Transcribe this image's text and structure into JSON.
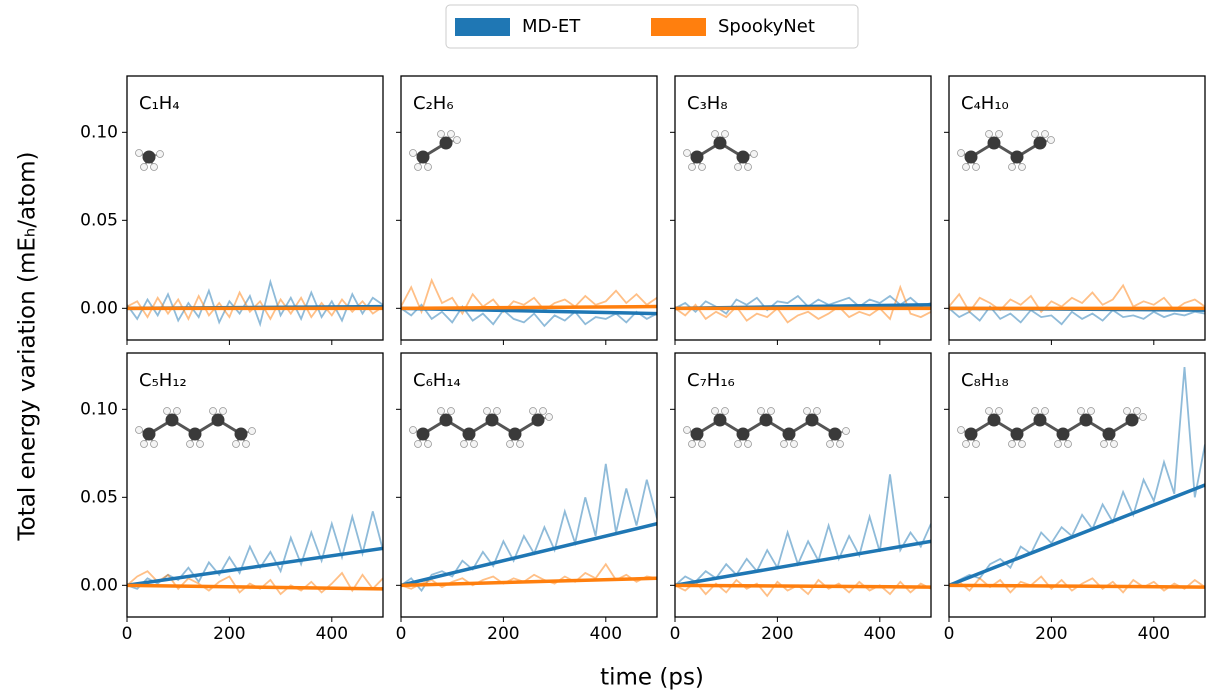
{
  "chart_data": {
    "type": "line",
    "xlabel": "time (ps)",
    "ylabel": "Total energy variation (mEₕ/atom)",
    "legend": "upper center",
    "xlim": [
      0,
      500
    ],
    "xticks": [
      0,
      200,
      400
    ],
    "ylim": [
      -0.018,
      0.132
    ],
    "yticks": [
      {
        "value": 0,
        "label": "0.00"
      },
      {
        "value": 0.05,
        "label": "0.05"
      },
      {
        "value": 0.1,
        "label": "0.10"
      }
    ],
    "x": [
      0,
      20,
      40,
      60,
      80,
      100,
      120,
      140,
      160,
      180,
      200,
      220,
      240,
      260,
      280,
      300,
      320,
      340,
      360,
      380,
      400,
      420,
      440,
      460,
      480,
      500
    ],
    "panels": [
      "C₁H₄",
      "C₂H₆",
      "C₃H₈",
      "C₄H₁₀",
      "C₅H₁₂",
      "C₆H₁₄",
      "C₇H₁₆",
      "C₈H₁₈"
    ],
    "series": [
      {
        "name": "MD-ET",
        "color": "#1f77b4",
        "values": [
          [
            0.002,
            -0.006,
            0.005,
            -0.004,
            0.008,
            -0.007,
            0.003,
            -0.005,
            0.01,
            -0.008,
            0.004,
            -0.003,
            0.007,
            -0.009,
            0.015,
            -0.004,
            0.006,
            -0.006,
            0.009,
            -0.005,
            0.004,
            -0.007,
            0.008,
            -0.003,
            0.006,
            0.002
          ],
          [
            0,
            -0.004,
            0.002,
            -0.006,
            -0.002,
            -0.008,
            0.001,
            -0.007,
            -0.003,
            -0.009,
            -0.001,
            -0.006,
            -0.008,
            -0.003,
            -0.01,
            -0.004,
            -0.007,
            -0.002,
            -0.009,
            -0.005,
            -0.006,
            -0.003,
            -0.008,
            -0.002,
            -0.006,
            -0.003
          ],
          [
            0,
            0.003,
            -0.002,
            0.004,
            0.001,
            -0.003,
            0.005,
            0.002,
            0.006,
            -0.001,
            0.004,
            0.003,
            0.007,
            0.001,
            0.005,
            0.002,
            0.004,
            0.006,
            0.001,
            0.005,
            0.003,
            0.007,
            0.002,
            0.006,
            0.001,
            0.003
          ],
          [
            0,
            -0.005,
            -0.002,
            -0.007,
            0.001,
            -0.006,
            -0.003,
            -0.008,
            -0.001,
            -0.005,
            -0.004,
            -0.009,
            -0.002,
            -0.006,
            -0.003,
            -0.007,
            -0.001,
            -0.005,
            -0.004,
            -0.006,
            -0.002,
            -0.005,
            -0.003,
            -0.004,
            -0.002,
            -0.003
          ],
          [
            0,
            -0.002,
            0.004,
            0.001,
            0.006,
            0.003,
            0.01,
            0.002,
            0.013,
            0.006,
            0.016,
            0.007,
            0.022,
            0.01,
            0.019,
            0.008,
            0.027,
            0.012,
            0.03,
            0.014,
            0.035,
            0.016,
            0.039,
            0.018,
            0.042,
            0.02
          ],
          [
            0,
            0.004,
            -0.003,
            0.006,
            0.008,
            0.005,
            0.014,
            0.009,
            0.019,
            0.011,
            0.025,
            0.014,
            0.028,
            0.018,
            0.033,
            0.02,
            0.042,
            0.024,
            0.05,
            0.028,
            0.069,
            0.03,
            0.055,
            0.034,
            0.06,
            0.038
          ],
          [
            0,
            0.005,
            0.002,
            0.008,
            0.004,
            0.012,
            0.006,
            0.015,
            0.008,
            0.02,
            0.01,
            0.03,
            0.012,
            0.025,
            0.014,
            0.034,
            0.015,
            0.028,
            0.017,
            0.039,
            0.019,
            0.063,
            0.02,
            0.03,
            0.022,
            0.035
          ],
          [
            0,
            0.003,
            0.006,
            0.004,
            0.012,
            0.015,
            0.01,
            0.022,
            0.018,
            0.03,
            0.024,
            0.033,
            0.028,
            0.04,
            0.032,
            0.046,
            0.036,
            0.053,
            0.04,
            0.06,
            0.048,
            0.07,
            0.052,
            0.124,
            0.05,
            0.08
          ]
        ],
        "fit": [
          [
            0,
            0.001
          ],
          [
            0,
            -0.003
          ],
          [
            0,
            0.002
          ],
          [
            0,
            -0.001
          ],
          [
            0,
            0.021
          ],
          [
            0,
            0.035
          ],
          [
            0,
            0.025
          ],
          [
            0,
            0.057
          ]
        ]
      },
      {
        "name": "SpookyNet",
        "color": "#ff7f0e",
        "values": [
          [
            0.001,
            0.004,
            -0.005,
            0.006,
            -0.003,
            0.005,
            -0.006,
            0.007,
            -0.004,
            0.003,
            -0.005,
            0.009,
            -0.002,
            0.004,
            -0.006,
            0.005,
            -0.003,
            0.006,
            -0.005,
            0.003,
            -0.004,
            0.005,
            -0.002,
            0.004,
            -0.003,
            0.001
          ],
          [
            0.001,
            0.012,
            -0.002,
            0.016,
            0.003,
            0.006,
            -0.003,
            0.008,
            0.001,
            0.005,
            -0.002,
            0.004,
            0.002,
            0.006,
            -0.001,
            0.003,
            0.005,
            0.001,
            0.007,
            0.002,
            0.004,
            0.01,
            0.003,
            0.008,
            0.002,
            0.006
          ],
          [
            0,
            -0.004,
            0.002,
            -0.006,
            -0.002,
            -0.005,
            0.001,
            -0.007,
            -0.003,
            -0.005,
            0,
            -0.008,
            -0.004,
            -0.002,
            -0.006,
            -0.003,
            0.001,
            -0.005,
            -0.002,
            -0.004,
            0,
            -0.006,
            0.012,
            -0.003,
            -0.005,
            -0.002
          ],
          [
            0.001,
            0.008,
            -0.002,
            0.006,
            0.003,
            -0.001,
            0.005,
            0.002,
            0.007,
            -0.002,
            0.004,
            0.001,
            0.006,
            0.003,
            0.009,
            0.002,
            0.005,
            0.013,
            0.001,
            0.004,
            0.002,
            0.006,
            -0.001,
            0.003,
            0.005,
            0.001
          ],
          [
            0,
            0.005,
            0.008,
            0.002,
            0.006,
            -0.002,
            0.004,
            0.001,
            -0.003,
            0.002,
            0.005,
            -0.004,
            0.001,
            -0.002,
            0.003,
            -0.005,
            0,
            -0.003,
            0.002,
            -0.004,
            0.001,
            0.007,
            -0.003,
            0.006,
            -0.002,
            0.004
          ],
          [
            0,
            -0.002,
            0.001,
            0.003,
            -0.001,
            0.002,
            0.004,
            0,
            0.003,
            0.005,
            0.001,
            0.004,
            0.002,
            0.006,
            0.003,
            0.001,
            0.005,
            0.002,
            0.007,
            0.004,
            0.012,
            0.003,
            0.006,
            0.002,
            0.005,
            0.004
          ],
          [
            0,
            -0.003,
            0.002,
            -0.005,
            0.001,
            -0.004,
            0.003,
            -0.002,
            0.001,
            -0.006,
            0.002,
            -0.003,
            0,
            -0.005,
            0.003,
            -0.002,
            0.001,
            -0.004,
            0.002,
            -0.003,
            0,
            -0.005,
            0.002,
            -0.004,
            0.001,
            -0.002
          ],
          [
            0,
            0.002,
            -0.003,
            0.004,
            -0.001,
            0.003,
            -0.004,
            0.002,
            0,
            0.005,
            -0.002,
            0.003,
            -0.003,
            0.001,
            0.004,
            -0.002,
            0.002,
            -0.004,
            0.003,
            -0.001,
            0.002,
            -0.003,
            0.001,
            -0.002,
            0.003,
            -0.001
          ]
        ],
        "fit": [
          [
            0,
            0
          ],
          [
            0,
            0.001
          ],
          [
            0,
            0
          ],
          [
            0,
            0
          ],
          [
            0,
            -0.002
          ],
          [
            0,
            0.004
          ],
          [
            0,
            -0.001
          ],
          [
            0,
            -0.001
          ]
        ]
      }
    ]
  }
}
